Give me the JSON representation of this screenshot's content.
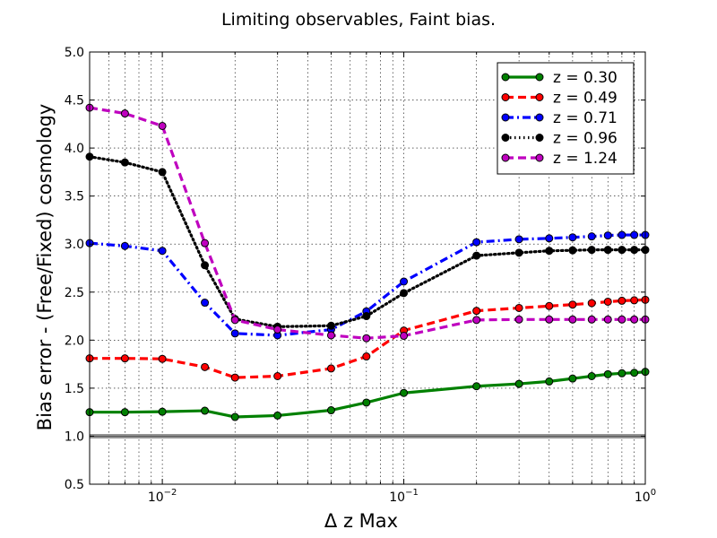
{
  "chart_data": {
    "type": "line",
    "title": "Limiting observables, Faint bias.",
    "xlabel": "Δ z Max",
    "ylabel": "Bias error - (Free/Fixed) cosmology",
    "xscale": "log",
    "xlim": [
      0.005,
      1.0
    ],
    "ylim": [
      0.5,
      5.0
    ],
    "grid": true,
    "legend_position": "top-right",
    "x_tick_labels": [
      {
        "value": 0.01,
        "base": "10",
        "exp": "−2"
      },
      {
        "value": 0.1,
        "base": "10",
        "exp": "−1"
      },
      {
        "value": 1.0,
        "base": "10",
        "exp": "0"
      }
    ],
    "y_tick_labels": [
      "0.5",
      "1.0",
      "1.5",
      "2.0",
      "2.5",
      "3.0",
      "3.5",
      "4.0",
      "4.5",
      "5.0"
    ],
    "reference_line": {
      "y": 1.0,
      "color": "#888888"
    },
    "x": [
      0.005,
      0.007,
      0.01,
      0.015,
      0.02,
      0.03,
      0.05,
      0.07,
      0.1,
      0.2,
      0.3,
      0.4,
      0.5,
      0.6,
      0.7,
      0.8,
      0.9,
      1.0
    ],
    "series": [
      {
        "name": "z = 0.30",
        "color": "#008000",
        "dash": "solid",
        "values": [
          1.25,
          1.25,
          1.255,
          1.265,
          1.2,
          1.215,
          1.27,
          1.35,
          1.45,
          1.52,
          1.545,
          1.57,
          1.6,
          1.625,
          1.645,
          1.655,
          1.66,
          1.67
        ]
      },
      {
        "name": "z = 0.49",
        "color": "#ff0000",
        "dash": "dashed",
        "values": [
          1.81,
          1.81,
          1.805,
          1.72,
          1.61,
          1.625,
          1.705,
          1.83,
          2.1,
          2.305,
          2.335,
          2.355,
          2.37,
          2.385,
          2.4,
          2.41,
          2.415,
          2.42
        ]
      },
      {
        "name": "z = 0.71",
        "color": "#0000ff",
        "dash": "dashdot",
        "values": [
          3.01,
          2.98,
          2.93,
          2.39,
          2.07,
          2.05,
          2.11,
          2.3,
          2.61,
          3.02,
          3.05,
          3.06,
          3.07,
          3.08,
          3.09,
          3.095,
          3.095,
          3.095
        ]
      },
      {
        "name": "z = 0.96",
        "color": "#000000",
        "dash": "dotted",
        "values": [
          3.91,
          3.85,
          3.75,
          2.78,
          2.22,
          2.14,
          2.15,
          2.25,
          2.49,
          2.88,
          2.91,
          2.93,
          2.935,
          2.94,
          2.94,
          2.94,
          2.94,
          2.94
        ]
      },
      {
        "name": "z = 1.24",
        "color": "#bf00bf",
        "dash": "dashed",
        "values": [
          4.42,
          4.36,
          4.23,
          3.01,
          2.21,
          2.11,
          2.05,
          2.02,
          2.045,
          2.21,
          2.215,
          2.215,
          2.215,
          2.215,
          2.215,
          2.215,
          2.215,
          2.215
        ]
      }
    ]
  }
}
